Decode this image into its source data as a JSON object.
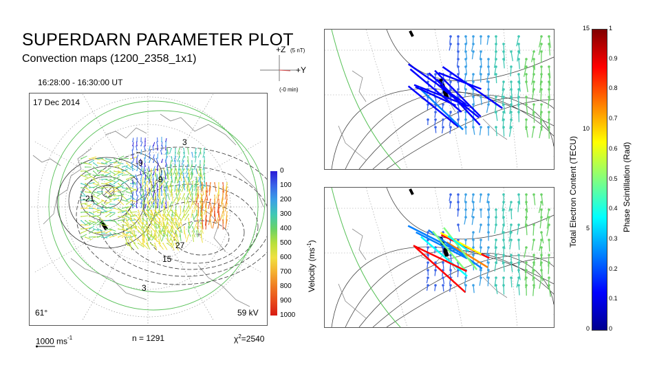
{
  "header": {
    "title": "SUPERDARN PARAMETER PLOT",
    "subtitle": "Convection maps (1200_2358_1x1)",
    "time_range": "16:28:00 - 16:30:00 UT"
  },
  "axes_key": {
    "z_label": "+Z",
    "z_scale": "(5 nT)",
    "y_label": "+Y",
    "lag": "(-0 min)"
  },
  "main_map": {
    "date": "17 Dec 2014",
    "lat_limit": "61°",
    "cpcp": "59 kV",
    "contour_labels": [
      "3",
      "-9",
      "-9",
      "-21",
      "27",
      "15",
      "3"
    ],
    "contour_label_text": {
      "c1": "3",
      "c2": "-9",
      "c3": "-9",
      "c4": "-21",
      "c5": "27",
      "c6": "15",
      "c7": "3"
    }
  },
  "footer": {
    "scale_vector": "1000 ms",
    "scale_sup": "-1",
    "n_points": "n = 1291",
    "chi_prefix": "χ",
    "chi_sup": "2",
    "chi_value": "=2540"
  },
  "velocity_bar": {
    "label": "Velocity (ms",
    "label_sup": "-1",
    "label_end": ")",
    "ticks": [
      "0",
      "100",
      "200",
      "300",
      "400",
      "500",
      "600",
      "700",
      "800",
      "900",
      "1000"
    ]
  },
  "tec_bar": {
    "label": "Total Electron Content (TECU)",
    "ticks": [
      "15",
      "10",
      "5",
      "0"
    ]
  },
  "phase_bar": {
    "label": "Phase Scintillation (Rad)",
    "ticks": [
      "1",
      "0.9",
      "0.8",
      "0.7",
      "0.6",
      "0.5",
      "0.4",
      "0.3",
      "0.2",
      "0.1",
      "0"
    ]
  },
  "colors": {
    "velocity_scale": [
      "#2b1bd6",
      "#3a64e8",
      "#3aa0e6",
      "#40c8b4",
      "#6ad266",
      "#b9e03c",
      "#f0e040",
      "#f4b030",
      "#ef7a22",
      "#e84a1a",
      "#d81a12"
    ],
    "jet_scale": [
      "#00008f",
      "#0000ff",
      "#0080ff",
      "#00ffff",
      "#80ff80",
      "#ffff00",
      "#ff8000",
      "#ff0000",
      "#800000"
    ],
    "contour": "#333333",
    "boundary": "#55c055",
    "grid": "#999999"
  }
}
